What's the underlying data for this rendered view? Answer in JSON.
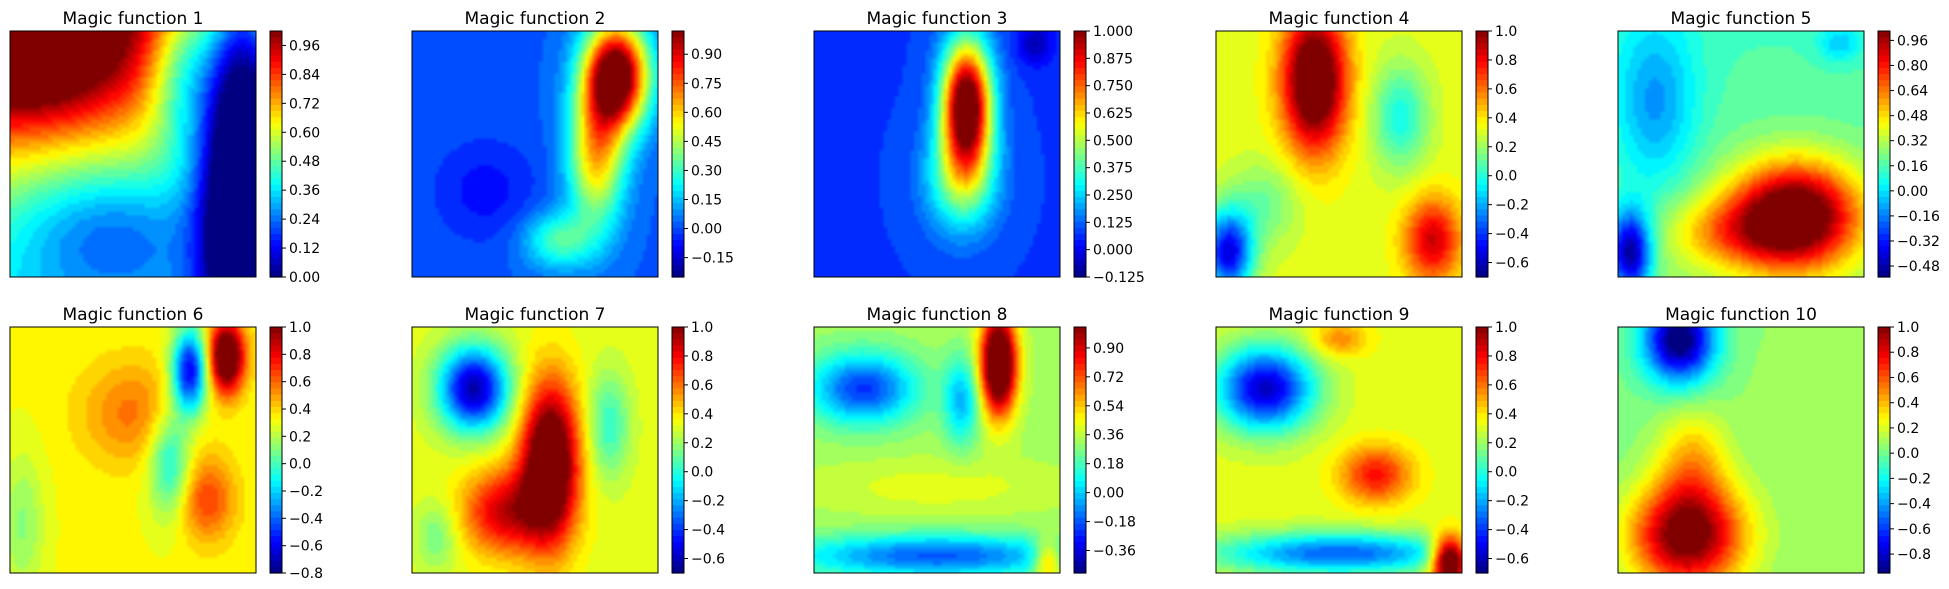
{
  "chart_data": [
    {
      "type": "heatmap",
      "title": "Magic function 1",
      "colormap": "jet",
      "color_range": [
        0.0,
        1.02
      ],
      "colorbar_ticks": [
        "0.00",
        "0.12",
        "0.24",
        "0.36",
        "0.48",
        "0.60",
        "0.72",
        "0.84",
        "0.96"
      ],
      "blobs": [
        [
          0.05,
          0.05,
          0.3,
          0.22,
          0.55
        ],
        [
          0.4,
          0.8,
          0.3,
          0.2,
          -0.25
        ],
        [
          0.95,
          0.5,
          0.12,
          0.6,
          -0.9
        ],
        [
          0.7,
          0.15,
          0.1,
          0.25,
          -0.3
        ]
      ]
    },
    {
      "type": "heatmap",
      "title": "Magic function 2",
      "colormap": "jet",
      "color_range": [
        -0.25,
        1.02
      ],
      "colorbar_ticks": [
        "−0.15",
        "0.00",
        "0.15",
        "0.30",
        "0.45",
        "0.60",
        "0.75",
        "0.90"
      ],
      "blobs": [
        [
          0.83,
          0.18,
          0.09,
          0.15,
          1.15
        ],
        [
          0.75,
          0.5,
          0.08,
          0.2,
          0.6
        ],
        [
          0.6,
          0.85,
          0.1,
          0.08,
          0.3
        ],
        [
          0.3,
          0.65,
          0.15,
          0.15,
          -0.1
        ]
      ]
    },
    {
      "type": "heatmap",
      "title": "Magic function 3",
      "colormap": "jet",
      "color_range": [
        -0.125,
        1.0
      ],
      "colorbar_ticks": [
        "−0.125",
        "0.000",
        "0.125",
        "0.250",
        "0.375",
        "0.500",
        "0.625",
        "0.750",
        "0.875",
        "1.000"
      ],
      "blobs": [
        [
          0.62,
          0.3,
          0.07,
          0.18,
          1.05
        ],
        [
          0.6,
          0.6,
          0.1,
          0.15,
          0.35
        ],
        [
          0.9,
          0.05,
          0.05,
          0.06,
          -0.15
        ]
      ]
    },
    {
      "type": "heatmap",
      "title": "Magic function 4",
      "colormap": "jet",
      "color_range": [
        -0.7,
        1.0
      ],
      "colorbar_ticks": [
        "−0.6",
        "−0.4",
        "−0.2",
        "0.0",
        "0.2",
        "0.4",
        "0.6",
        "0.8",
        "1.0"
      ],
      "blobs": [
        [
          0.4,
          0.2,
          0.09,
          0.2,
          0.95
        ],
        [
          0.88,
          0.85,
          0.08,
          0.12,
          0.55
        ],
        [
          0.05,
          0.9,
          0.07,
          0.12,
          -0.85
        ],
        [
          0.75,
          0.35,
          0.08,
          0.15,
          -0.35
        ],
        [
          0.2,
          0.7,
          0.1,
          0.12,
          -0.2
        ]
      ]
    },
    {
      "type": "heatmap",
      "title": "Magic function 5",
      "colormap": "jet",
      "color_range": [
        -0.55,
        1.02
      ],
      "colorbar_ticks": [
        "−0.48",
        "−0.32",
        "−0.16",
        "0.00",
        "0.16",
        "0.32",
        "0.48",
        "0.64",
        "0.80",
        "0.96"
      ],
      "blobs": [
        [
          0.72,
          0.75,
          0.18,
          0.15,
          1.0
        ],
        [
          0.45,
          0.82,
          0.18,
          0.1,
          0.3
        ],
        [
          0.05,
          0.9,
          0.06,
          0.12,
          -0.75
        ],
        [
          0.15,
          0.3,
          0.12,
          0.25,
          -0.3
        ],
        [
          0.9,
          0.05,
          0.06,
          0.05,
          -0.2
        ]
      ]
    },
    {
      "type": "heatmap",
      "title": "Magic function 6",
      "colormap": "jet",
      "color_range": [
        -0.8,
        1.0
      ],
      "colorbar_ticks": [
        "−0.8",
        "−0.6",
        "−0.4",
        "−0.2",
        "0.0",
        "0.2",
        "0.4",
        "0.6",
        "0.8",
        "1.0"
      ],
      "blobs": [
        [
          0.88,
          0.12,
          0.05,
          0.1,
          1.0
        ],
        [
          0.73,
          0.18,
          0.05,
          0.12,
          -0.95
        ],
        [
          0.65,
          0.55,
          0.06,
          0.15,
          -0.45
        ],
        [
          0.8,
          0.7,
          0.08,
          0.12,
          0.35
        ],
        [
          0.5,
          0.35,
          0.15,
          0.15,
          0.25
        ],
        [
          0.05,
          0.8,
          0.06,
          0.2,
          -0.2
        ]
      ]
    },
    {
      "type": "heatmap",
      "title": "Magic function 7",
      "colormap": "jet",
      "color_range": [
        -0.7,
        1.0
      ],
      "colorbar_ticks": [
        "−0.6",
        "−0.4",
        "−0.2",
        "0.0",
        "0.2",
        "0.4",
        "0.6",
        "0.8",
        "1.0"
      ],
      "blobs": [
        [
          0.56,
          0.55,
          0.08,
          0.22,
          1.0
        ],
        [
          0.38,
          0.75,
          0.12,
          0.12,
          0.55
        ],
        [
          0.25,
          0.25,
          0.1,
          0.12,
          -0.95
        ],
        [
          0.8,
          0.4,
          0.06,
          0.15,
          -0.3
        ],
        [
          0.1,
          0.85,
          0.06,
          0.1,
          -0.2
        ]
      ]
    },
    {
      "type": "heatmap",
      "title": "Magic function 8",
      "colormap": "jet",
      "color_range": [
        -0.5,
        1.03
      ],
      "colorbar_ticks": [
        "−0.36",
        "−0.18",
        "0.00",
        "0.18",
        "0.36",
        "0.54",
        "0.72",
        "0.90"
      ],
      "blobs": [
        [
          0.75,
          0.15,
          0.05,
          0.14,
          1.1
        ],
        [
          0.5,
          0.93,
          0.4,
          0.06,
          -0.5
        ],
        [
          0.2,
          0.25,
          0.15,
          0.1,
          -0.55
        ],
        [
          0.6,
          0.3,
          0.05,
          0.12,
          -0.35
        ],
        [
          0.95,
          0.95,
          0.04,
          0.06,
          0.4
        ],
        [
          0.5,
          0.65,
          0.35,
          0.08,
          0.1
        ]
      ]
    },
    {
      "type": "heatmap",
      "title": "Magic function 9",
      "colormap": "jet",
      "color_range": [
        -0.7,
        1.0
      ],
      "colorbar_ticks": [
        "−0.6",
        "−0.4",
        "−0.2",
        "0.0",
        "0.2",
        "0.4",
        "0.6",
        "0.8",
        "1.0"
      ],
      "blobs": [
        [
          0.2,
          0.25,
          0.14,
          0.12,
          -0.9
        ],
        [
          0.65,
          0.6,
          0.1,
          0.08,
          0.45
        ],
        [
          0.5,
          0.92,
          0.35,
          0.06,
          -0.65
        ],
        [
          0.95,
          0.95,
          0.05,
          0.07,
          1.1
        ],
        [
          0.5,
          0.05,
          0.08,
          0.05,
          0.25
        ]
      ]
    },
    {
      "type": "heatmap",
      "title": "Magic function 10",
      "colormap": "jet",
      "color_range": [
        -0.95,
        1.0
      ],
      "colorbar_ticks": [
        "−0.8",
        "−0.6",
        "−0.4",
        "−0.2",
        "0.0",
        "0.2",
        "0.4",
        "0.6",
        "0.8",
        "1.0"
      ],
      "blobs": [
        [
          0.28,
          0.85,
          0.16,
          0.15,
          1.05
        ],
        [
          0.3,
          0.55,
          0.1,
          0.15,
          0.35
        ],
        [
          0.25,
          0.05,
          0.1,
          0.12,
          -1.05
        ],
        [
          0.75,
          0.3,
          0.15,
          0.2,
          0.05
        ]
      ]
    }
  ]
}
